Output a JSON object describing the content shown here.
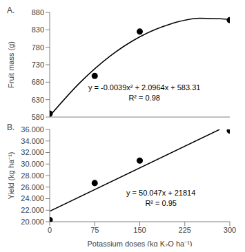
{
  "chart_data": [
    {
      "type": "scatter",
      "title": "A.",
      "y_label": "Fruit mass (g)",
      "xlim": [
        0,
        300
      ],
      "xticks": [
        0,
        75,
        150,
        225,
        300
      ],
      "ylim": [
        580,
        880
      ],
      "yticks": [
        580,
        630,
        680,
        730,
        780,
        830,
        880
      ],
      "tick_labels": "y",
      "grid": false,
      "annotations": [
        "y = -0.0039x² + 2.0964x + 583.31",
        "R² = 0.98"
      ],
      "series": [
        {
          "type": "scatter",
          "marker": "circle",
          "color": "#000000",
          "x": [
            0,
            75,
            150,
            300
          ],
          "values": [
            590,
            698,
            825,
            858
          ]
        },
        {
          "type": "line",
          "line_style": "solid",
          "color": "#000000",
          "x": [
            0,
            50,
            100,
            150,
            200,
            250,
            300
          ],
          "values": [
            583,
            678,
            754,
            810,
            846,
            863,
            860
          ]
        }
      ]
    },
    {
      "type": "scatter",
      "title": "B.",
      "y_label": "Yield (kg ha⁻¹)",
      "x_label": "Potassium doses (kg K₂O ha⁻¹)",
      "xlim": [
        0,
        300
      ],
      "xticks": [
        0,
        75,
        150,
        225,
        300
      ],
      "ylim": [
        20000,
        36000
      ],
      "yticks": [
        {
          "value": 20000,
          "label": "20.000"
        },
        {
          "value": 22000,
          "label": "22.000"
        },
        {
          "value": 24000,
          "label": "24.000"
        },
        {
          "value": 26000,
          "label": "26.000"
        },
        {
          "value": 28000,
          "label": "28.000"
        },
        {
          "value": 30000,
          "label": "30.000"
        },
        {
          "value": 32000,
          "label": "32.000"
        },
        {
          "value": 34000,
          "label": "34.000"
        },
        {
          "value": 36000,
          "label": "36.000"
        }
      ],
      "grid": false,
      "annotations": [
        "y = 50.047x + 21814",
        "R² = 0.95"
      ],
      "series": [
        {
          "type": "scatter",
          "marker": "circle",
          "color": "#000000",
          "x": [
            0,
            75,
            150,
            300
          ],
          "values": [
            20300,
            26700,
            30600,
            35800
          ]
        },
        {
          "type": "line",
          "line_style": "solid",
          "color": "#000000",
          "x": [
            0,
            283
          ],
          "values": [
            21800,
            36000
          ]
        }
      ]
    }
  ]
}
